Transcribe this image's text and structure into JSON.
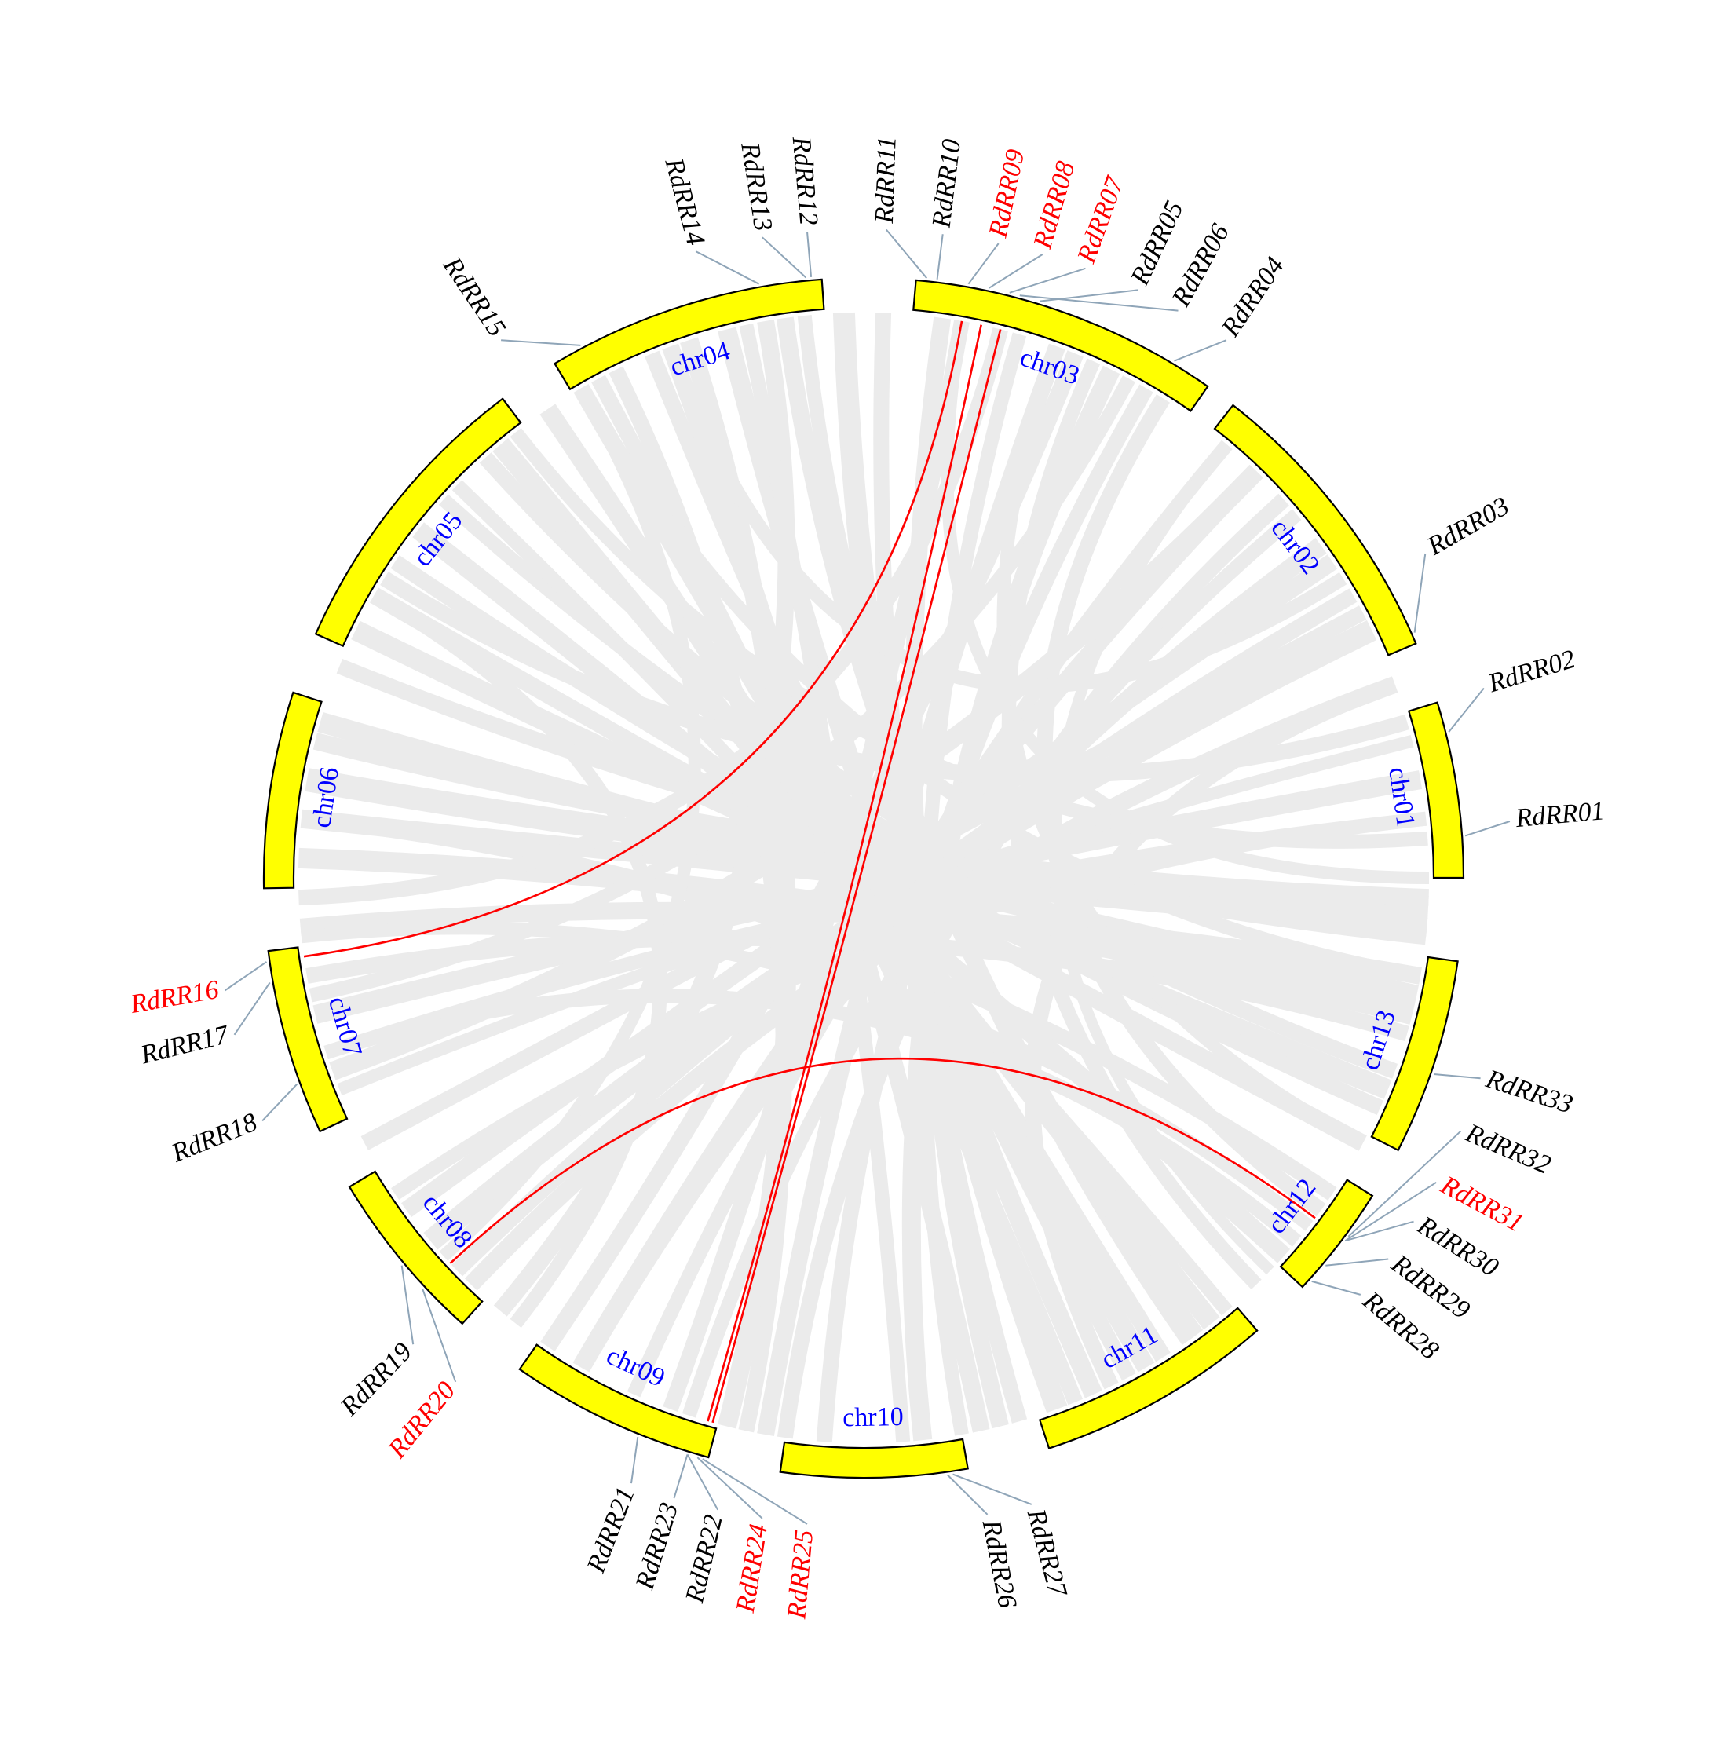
{
  "figure": "circos synteny plot of RdRR genes",
  "colors": {
    "chromosome_fill": "#ffff00",
    "chromosome_stroke": "#000000",
    "chromosome_label": "#0000ff",
    "background_link": "#ebebeb",
    "duplication_link": "#ff0000",
    "gene_normal": "#000000",
    "gene_duplicated": "#ff0000",
    "leader_line": "#8fa5b8"
  },
  "chromosomes": [
    {
      "name": "chr01",
      "start_deg": 90,
      "end_deg": 73
    },
    {
      "name": "chr02",
      "start_deg": 67,
      "end_deg": 38
    },
    {
      "name": "chr03",
      "start_deg": 35,
      "end_deg": 5
    },
    {
      "name": "chr04",
      "start_deg": -4,
      "end_deg": -31
    },
    {
      "name": "chr05",
      "start_deg": -37,
      "end_deg": -66
    },
    {
      "name": "chr06",
      "start_deg": -72,
      "end_deg": -91
    },
    {
      "name": "chr07",
      "start_deg": -97,
      "end_deg": -115
    },
    {
      "name": "chr08",
      "start_deg": -121,
      "end_deg": -138
    },
    {
      "name": "chr09",
      "start_deg": -145,
      "end_deg": -165
    },
    {
      "name": "chr10",
      "start_deg": -172,
      "end_deg": 170
    },
    {
      "name": "chr11",
      "start_deg": 162,
      "end_deg": 139
    },
    {
      "name": "chr12",
      "start_deg": 133,
      "end_deg": 122
    },
    {
      "name": "chr13",
      "start_deg": 117,
      "end_deg": 98
    }
  ],
  "genes": [
    {
      "name": "RdRR01",
      "chr": "chr01",
      "anchor_deg": 86,
      "label_deg": 85,
      "duplicated": false
    },
    {
      "name": "RdRR02",
      "chr": "chr01",
      "anchor_deg": 76,
      "label_deg": 73,
      "duplicated": false
    },
    {
      "name": "RdRR03",
      "chr": "chr02",
      "anchor_deg": 66,
      "label_deg": 60,
      "duplicated": false
    },
    {
      "name": "RdRR04",
      "chr": "chr03",
      "anchor_deg": 31,
      "label_deg": 34,
      "duplicated": false
    },
    {
      "name": "RdRR05",
      "chr": "chr03",
      "anchor_deg": 17,
      "label_deg": 25,
      "duplicated": false
    },
    {
      "name": "RdRR06",
      "chr": "chr03",
      "anchor_deg": 15,
      "label_deg": 29,
      "duplicated": false
    },
    {
      "name": "RdRR07",
      "chr": "chr03",
      "anchor_deg": 14,
      "label_deg": 20,
      "duplicated": true
    },
    {
      "name": "RdRR08",
      "chr": "chr03",
      "anchor_deg": 12,
      "label_deg": 16,
      "duplicated": true
    },
    {
      "name": "RdRR09",
      "chr": "chr03",
      "anchor_deg": 10,
      "label_deg": 12,
      "duplicated": true
    },
    {
      "name": "RdRR10",
      "chr": "chr03",
      "anchor_deg": 7,
      "label_deg": 7,
      "duplicated": false
    },
    {
      "name": "RdRR11",
      "chr": "chr03",
      "anchor_deg": 6,
      "label_deg": 2,
      "duplicated": false
    },
    {
      "name": "RdRR12",
      "chr": "chr04",
      "anchor_deg": -5,
      "label_deg": -5,
      "duplicated": false
    },
    {
      "name": "RdRR13",
      "chr": "chr04",
      "anchor_deg": -5.5,
      "label_deg": -9,
      "duplicated": false
    },
    {
      "name": "RdRR14",
      "chr": "chr04",
      "anchor_deg": -10,
      "label_deg": -15,
      "duplicated": false
    },
    {
      "name": "RdRR15",
      "chr": "chr04",
      "anchor_deg": -28,
      "label_deg": -34,
      "duplicated": false
    },
    {
      "name": "RdRR16",
      "chr": "chr07",
      "anchor_deg": -98,
      "label_deg": -100,
      "duplicated": true
    },
    {
      "name": "RdRR17",
      "chr": "chr07",
      "anchor_deg": -100,
      "label_deg": -104,
      "duplicated": false
    },
    {
      "name": "RdRR18",
      "chr": "chr07",
      "anchor_deg": -110,
      "label_deg": -112,
      "duplicated": false
    },
    {
      "name": "RdRR19",
      "chr": "chr08",
      "anchor_deg": -130,
      "label_deg": -136,
      "duplicated": false
    },
    {
      "name": "RdRR20",
      "chr": "chr08",
      "anchor_deg": -133,
      "label_deg": -141,
      "duplicated": true
    },
    {
      "name": "RdRR21",
      "chr": "chr09",
      "anchor_deg": -158,
      "label_deg": -159,
      "duplicated": false
    },
    {
      "name": "RdRR22",
      "chr": "chr09",
      "anchor_deg": -163,
      "label_deg": -167,
      "duplicated": false
    },
    {
      "name": "RdRR23",
      "chr": "chr09",
      "anchor_deg": -163,
      "label_deg": -163,
      "duplicated": false
    },
    {
      "name": "RdRR24",
      "chr": "chr09",
      "anchor_deg": -164,
      "label_deg": -171,
      "duplicated": true
    },
    {
      "name": "RdRR25",
      "chr": "chr09",
      "anchor_deg": -164.5,
      "label_deg": -175,
      "duplicated": true
    },
    {
      "name": "RdRR26",
      "chr": "chr10",
      "anchor_deg": 172,
      "label_deg": 169,
      "duplicated": false
    },
    {
      "name": "RdRR27",
      "chr": "chr10",
      "anchor_deg": 171.5,
      "label_deg": 165,
      "duplicated": false
    },
    {
      "name": "RdRR28",
      "chr": "chr12",
      "anchor_deg": 132,
      "label_deg": 130,
      "duplicated": false
    },
    {
      "name": "RdRR29",
      "chr": "chr12",
      "anchor_deg": 130,
      "label_deg": 126,
      "duplicated": false
    },
    {
      "name": "RdRR30",
      "chr": "chr12",
      "anchor_deg": 127,
      "label_deg": 122,
      "duplicated": false
    },
    {
      "name": "RdRR31",
      "chr": "chr12",
      "anchor_deg": 127,
      "label_deg": 118,
      "duplicated": true
    },
    {
      "name": "RdRR32",
      "chr": "chr12",
      "anchor_deg": 126.5,
      "label_deg": 113,
      "duplicated": false
    },
    {
      "name": "RdRR33",
      "chr": "chr13",
      "anchor_deg": 109,
      "label_deg": 108,
      "duplicated": false
    }
  ],
  "duplication_links": [
    {
      "from": "RdRR20",
      "to": "RdRR31"
    },
    {
      "from": "RdRR16",
      "to": "RdRR09"
    },
    {
      "from": "RdRR24",
      "to": "RdRR08"
    },
    {
      "from": "RdRR25",
      "to": "RdRR07"
    }
  ],
  "background_links": [
    {
      "a": 93,
      "b": -80,
      "w": 30
    },
    {
      "a": 95,
      "b": -84,
      "w": 24
    },
    {
      "a": 92,
      "b": -76,
      "w": 22
    },
    {
      "a": 104,
      "b": -88,
      "w": 26
    },
    {
      "a": 100,
      "b": -95,
      "w": 22
    },
    {
      "a": 106,
      "b": -100,
      "w": 20
    },
    {
      "a": 80,
      "b": -104,
      "w": 24
    },
    {
      "a": 84,
      "b": -108,
      "w": 18
    },
    {
      "a": 76,
      "b": -112,
      "w": 16
    },
    {
      "a": 64,
      "b": -130,
      "w": 28
    },
    {
      "a": 60,
      "b": -134,
      "w": 20
    },
    {
      "a": 56,
      "b": -126,
      "w": 22
    },
    {
      "a": 112,
      "b": -64,
      "w": 26
    },
    {
      "a": 114,
      "b": -56,
      "w": 20
    },
    {
      "a": 110,
      "b": -48,
      "w": 18
    },
    {
      "a": 124,
      "b": -84,
      "w": 20
    },
    {
      "a": 128,
      "b": -96,
      "w": 16
    },
    {
      "a": 130,
      "b": -108,
      "w": 18
    },
    {
      "a": 142,
      "b": -40,
      "w": 26
    },
    {
      "a": 148,
      "b": -30,
      "w": 22
    },
    {
      "a": 152,
      "b": -22,
      "w": 20
    },
    {
      "a": 156,
      "b": -14,
      "w": 24
    },
    {
      "a": 145,
      "b": -6,
      "w": 18
    },
    {
      "a": 160,
      "b": -2,
      "w": 28
    },
    {
      "a": 166,
      "b": 8,
      "w": 22
    },
    {
      "a": 170,
      "b": 16,
      "w": 18
    },
    {
      "a": 174,
      "b": 26,
      "w": 24
    },
    {
      "a": -176,
      "b": 30,
      "w": 20
    },
    {
      "a": -172,
      "b": 48,
      "w": 20
    },
    {
      "a": -150,
      "b": 54,
      "w": 24
    },
    {
      "a": -156,
      "b": 40,
      "w": 18
    },
    {
      "a": -146,
      "b": 22,
      "w": 22
    },
    {
      "a": -160,
      "b": 10,
      "w": 20
    },
    {
      "a": -166,
      "b": -18,
      "w": 24
    },
    {
      "a": -168,
      "b": -26,
      "w": 20
    },
    {
      "a": -140,
      "b": -10,
      "w": 22
    },
    {
      "a": -136,
      "b": 70,
      "w": 22
    },
    {
      "a": -124,
      "b": 84,
      "w": 18
    },
    {
      "a": -118,
      "b": 62,
      "w": 20
    },
    {
      "a": -110,
      "b": 44,
      "w": 24
    },
    {
      "a": -102,
      "b": 28,
      "w": 18
    },
    {
      "a": -92,
      "b": 14,
      "w": 20
    },
    {
      "a": -74,
      "b": 102,
      "w": 26
    },
    {
      "a": -68,
      "b": 96,
      "w": 20
    },
    {
      "a": -60,
      "b": 118,
      "w": 22
    },
    {
      "a": -52,
      "b": 132,
      "w": 24
    },
    {
      "a": -46,
      "b": 140,
      "w": 18
    },
    {
      "a": -42,
      "b": 110,
      "w": 20
    },
    {
      "a": -34,
      "b": 150,
      "w": 24
    },
    {
      "a": -28,
      "b": 158,
      "w": 20
    },
    {
      "a": -20,
      "b": 168,
      "w": 22
    },
    {
      "a": -12,
      "b": 176,
      "w": 18
    },
    {
      "a": -8,
      "b": 144,
      "w": 22
    },
    {
      "a": 2,
      "b": 164,
      "w": 20
    },
    {
      "a": 20,
      "b": -170,
      "w": 22
    },
    {
      "a": 24,
      "b": 136,
      "w": 18
    },
    {
      "a": 32,
      "b": 126,
      "w": 20
    },
    {
      "a": 44,
      "b": -150,
      "w": 22
    },
    {
      "a": 50,
      "b": -162,
      "w": 18
    },
    {
      "a": 70,
      "b": 154,
      "w": 20
    },
    {
      "a": 86,
      "b": -38,
      "w": 18
    },
    {
      "a": 74,
      "b": -58,
      "w": 20
    },
    {
      "a": 100,
      "b": -30,
      "w": 18
    },
    {
      "a": 90,
      "b": 10,
      "w": 16
    },
    {
      "a": 58,
      "b": -20,
      "w": 18
    },
    {
      "a": 118,
      "b": 20,
      "w": 16
    },
    {
      "a": 134,
      "b": 40,
      "w": 14
    },
    {
      "a": -142,
      "b": -60,
      "w": 18
    },
    {
      "a": -132,
      "b": -30,
      "w": 16
    }
  ]
}
